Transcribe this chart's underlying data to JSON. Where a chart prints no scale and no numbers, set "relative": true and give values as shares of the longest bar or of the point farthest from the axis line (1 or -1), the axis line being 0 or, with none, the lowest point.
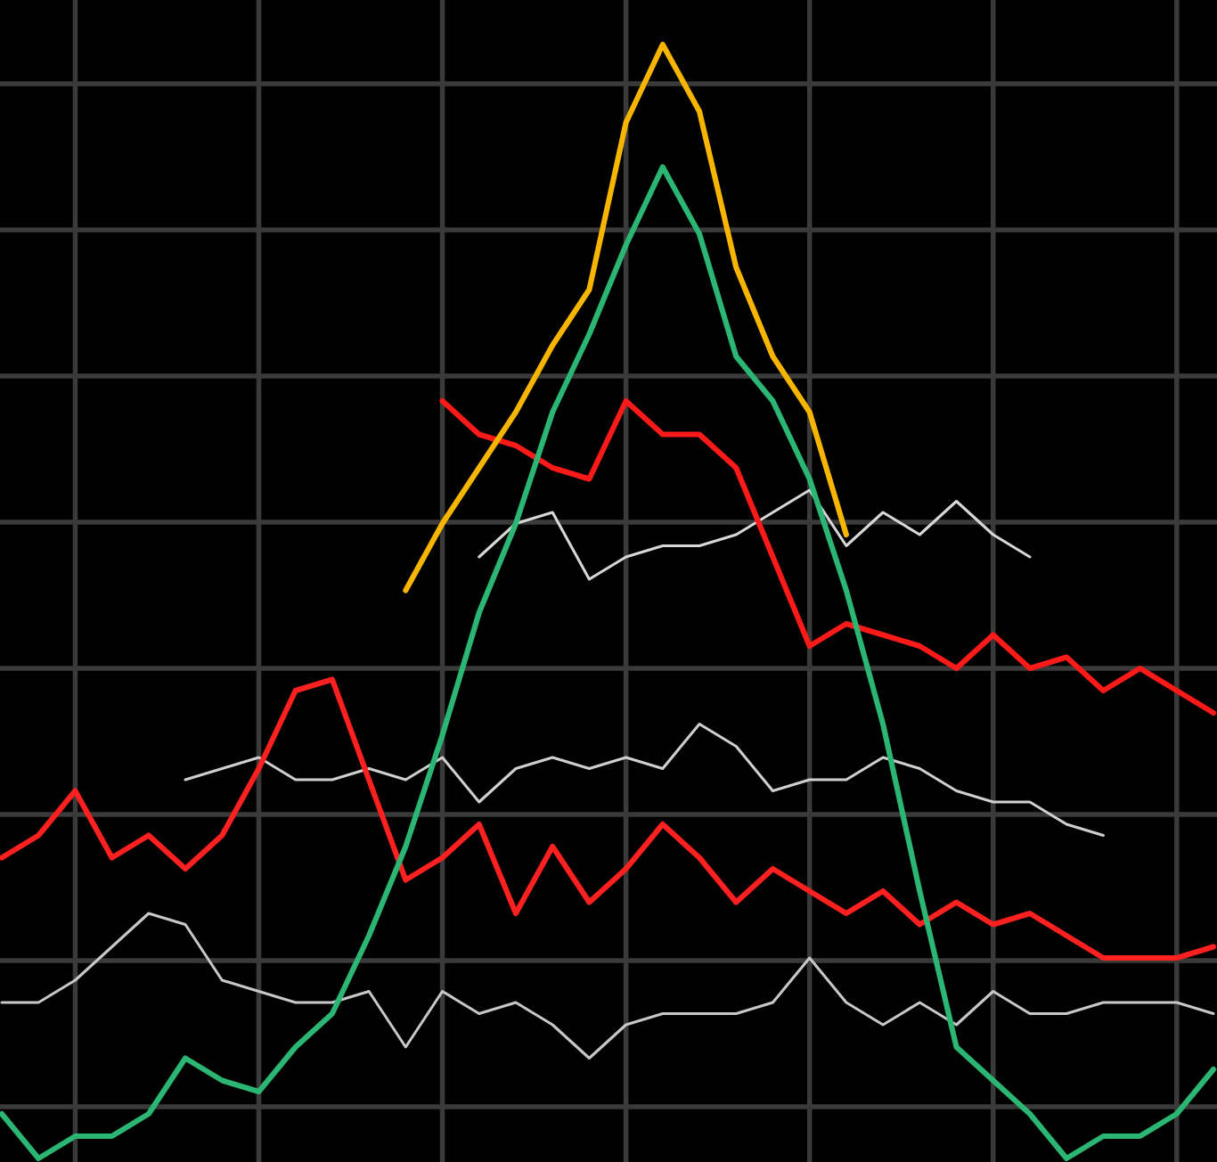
{
  "chart_data": {
    "type": "line",
    "relative": true,
    "grid": true,
    "line_style": "solid",
    "categories": [
      null,
      null,
      null,
      null,
      null,
      null,
      null,
      null,
      null,
      null,
      null,
      null,
      null,
      null,
      null,
      null,
      null,
      null,
      null,
      null,
      null,
      null,
      null,
      null,
      null,
      null,
      null,
      null,
      null,
      null,
      null,
      null,
      null,
      null
    ],
    "series": [
      {
        "color": "#d8d8d8",
        "values": [
          null,
          null,
          null,
          null,
          null,
          null,
          null,
          null,
          null,
          null,
          null,
          null,
          null,
          0.54,
          0.57,
          0.58,
          0.52,
          0.54,
          0.55,
          0.55,
          0.56,
          0.58,
          0.6,
          0.55,
          0.58,
          0.56,
          0.59,
          0.56,
          0.54,
          null,
          null,
          null,
          null,
          null
        ]
      },
      {
        "color": "#d0d0d0",
        "values": [
          null,
          null,
          null,
          null,
          null,
          0.34,
          0.35,
          0.36,
          0.34,
          0.34,
          0.35,
          0.34,
          0.36,
          0.32,
          0.35,
          0.36,
          0.35,
          0.36,
          0.35,
          0.39,
          0.37,
          0.33,
          0.34,
          0.34,
          0.36,
          0.35,
          0.33,
          0.32,
          0.32,
          0.3,
          0.29,
          null,
          null,
          null
        ]
      },
      {
        "color": "#c8c8c8",
        "values": [
          0.14,
          0.14,
          0.16,
          0.19,
          0.22,
          0.21,
          0.16,
          0.15,
          0.14,
          0.14,
          0.15,
          0.1,
          0.15,
          0.13,
          0.14,
          0.12,
          0.09,
          0.12,
          0.13,
          0.13,
          0.13,
          0.14,
          0.18,
          0.14,
          0.12,
          0.14,
          0.12,
          0.15,
          0.13,
          0.13,
          0.14,
          0.14,
          0.14,
          0.13
        ]
      },
      {
        "color": "#ff2020",
        "values": [
          0.27,
          0.29,
          0.33,
          0.27,
          0.29,
          0.26,
          0.29,
          0.35,
          0.42,
          0.43,
          0.34,
          0.25,
          0.27,
          0.3,
          0.22,
          0.28,
          0.23,
          0.26,
          0.3,
          0.27,
          0.23,
          0.26,
          0.24,
          0.22,
          0.24,
          0.21,
          0.23,
          0.21,
          0.22,
          0.2,
          0.18,
          0.18,
          0.18,
          0.19
        ]
      },
      {
        "color": "#ff1a1a",
        "values": [
          null,
          null,
          null,
          null,
          null,
          null,
          null,
          null,
          null,
          null,
          null,
          null,
          0.68,
          0.65,
          0.64,
          0.62,
          0.61,
          0.68,
          0.65,
          0.65,
          0.62,
          0.54,
          0.46,
          0.48,
          0.47,
          0.46,
          0.44,
          0.47,
          0.44,
          0.45,
          0.42,
          0.44,
          0.42,
          0.4
        ]
      },
      {
        "color": "#f7b500",
        "values": [
          null,
          null,
          null,
          null,
          null,
          null,
          null,
          null,
          null,
          null,
          null,
          0.51,
          0.57,
          0.62,
          0.67,
          0.73,
          0.78,
          0.93,
          1.0,
          0.94,
          0.8,
          0.72,
          0.67,
          0.56,
          null,
          null,
          null,
          null,
          null,
          null,
          null,
          null,
          null,
          null
        ]
      },
      {
        "color": "#2bb673",
        "values": [
          0.04,
          0.0,
          0.02,
          0.02,
          0.04,
          0.09,
          0.07,
          0.06,
          0.1,
          0.13,
          0.2,
          0.28,
          0.38,
          0.49,
          0.57,
          0.67,
          0.74,
          0.82,
          0.89,
          0.83,
          0.72,
          0.68,
          0.61,
          0.51,
          0.39,
          0.24,
          0.1,
          0.07,
          0.04,
          0.0,
          0.02,
          0.02,
          0.04,
          0.08
        ]
      }
    ]
  }
}
